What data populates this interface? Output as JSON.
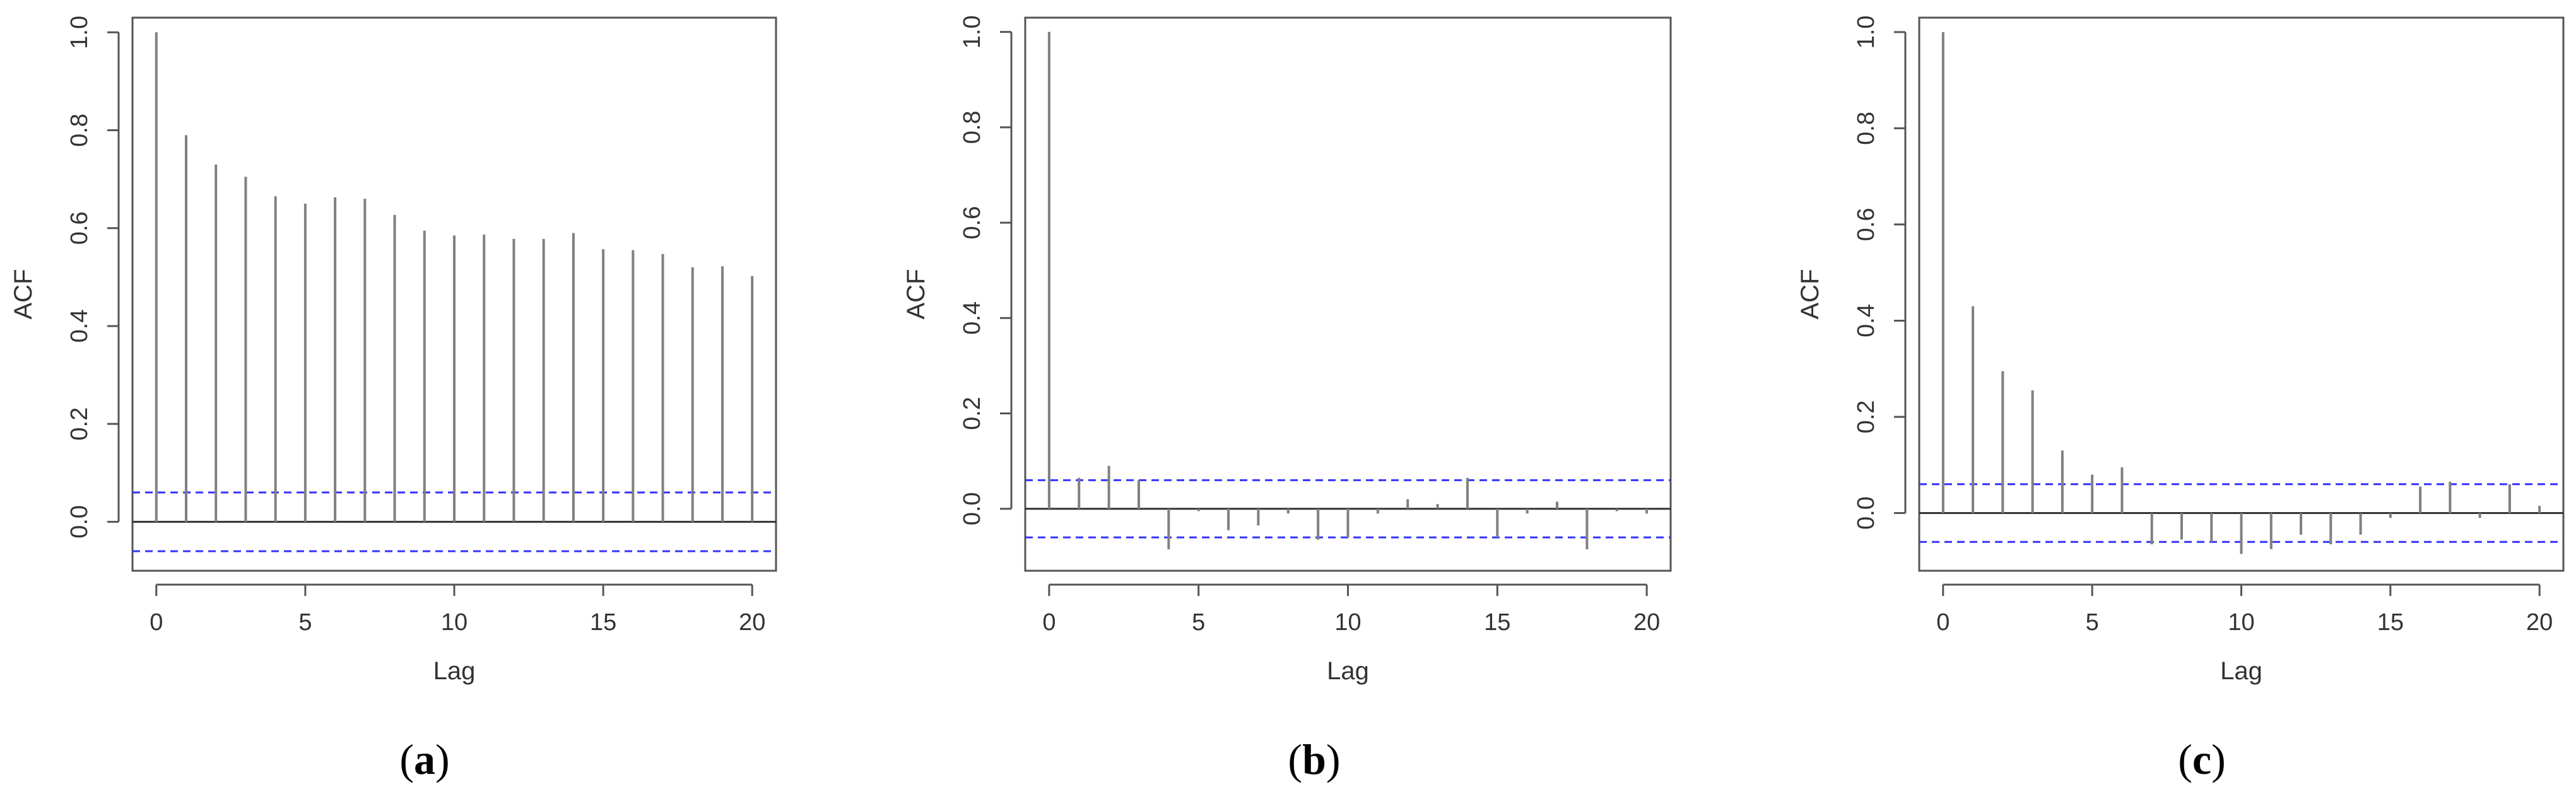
{
  "figure": {
    "captions": [
      {
        "open": "(",
        "letter": "a",
        "close": ")"
      },
      {
        "open": "(",
        "letter": "b",
        "close": ")"
      },
      {
        "open": "(",
        "letter": "c",
        "close": ")"
      }
    ]
  },
  "chart_data": [
    {
      "type": "bar",
      "title": "",
      "xlabel": "Lag",
      "ylabel": "ACF",
      "x": [
        0,
        1,
        2,
        3,
        4,
        5,
        6,
        7,
        8,
        9,
        10,
        11,
        12,
        13,
        14,
        15,
        16,
        17,
        18,
        19,
        20
      ],
      "values": [
        1.0,
        0.79,
        0.73,
        0.705,
        0.665,
        0.65,
        0.663,
        0.66,
        0.627,
        0.595,
        0.585,
        0.587,
        0.578,
        0.578,
        0.59,
        0.557,
        0.555,
        0.547,
        0.52,
        0.522,
        0.502
      ],
      "confidence_band": 0.06,
      "xlim": [
        -0.8,
        20.8
      ],
      "ylim": [
        -0.1,
        1.03
      ],
      "xticks": [
        "0",
        "5",
        "10",
        "15",
        "20"
      ],
      "yticks": [
        "0.0",
        "0.2",
        "0.4",
        "0.6",
        "0.8",
        "1.0"
      ],
      "colors": {
        "bars": "#808080",
        "band": "#3333ff",
        "frame": "#555555"
      }
    },
    {
      "type": "bar",
      "title": "",
      "xlabel": "Lag",
      "ylabel": "ACF",
      "x": [
        0,
        1,
        2,
        3,
        4,
        5,
        6,
        7,
        8,
        9,
        10,
        11,
        12,
        13,
        14,
        15,
        16,
        17,
        18,
        19,
        20
      ],
      "values": [
        1.0,
        0.065,
        0.09,
        0.06,
        -0.085,
        -0.005,
        -0.045,
        -0.035,
        -0.01,
        -0.065,
        -0.06,
        -0.01,
        0.02,
        0.01,
        0.065,
        -0.06,
        -0.01,
        0.015,
        -0.085,
        -0.005,
        -0.01
      ],
      "confidence_band": 0.06,
      "xlim": [
        -0.8,
        20.8
      ],
      "ylim": [
        -0.13,
        1.03
      ],
      "xticks": [
        "0",
        "5",
        "10",
        "15",
        "20"
      ],
      "yticks": [
        "0.0",
        "0.2",
        "0.4",
        "0.6",
        "0.8",
        "1.0"
      ],
      "colors": {
        "bars": "#808080",
        "band": "#3333ff",
        "frame": "#555555"
      }
    },
    {
      "type": "bar",
      "title": "",
      "xlabel": "Lag",
      "ylabel": "ACF",
      "x": [
        0,
        1,
        2,
        3,
        4,
        5,
        6,
        7,
        8,
        9,
        10,
        11,
        12,
        13,
        14,
        15,
        16,
        17,
        18,
        19,
        20
      ],
      "values": [
        1.0,
        0.43,
        0.295,
        0.255,
        0.13,
        0.08,
        0.095,
        -0.065,
        -0.055,
        -0.06,
        -0.085,
        -0.075,
        -0.045,
        -0.065,
        -0.045,
        -0.01,
        0.055,
        0.065,
        -0.01,
        0.06,
        0.015
      ],
      "confidence_band": 0.06,
      "xlim": [
        -0.8,
        20.8
      ],
      "ylim": [
        -0.12,
        1.03
      ],
      "xticks": [
        "0",
        "5",
        "10",
        "15",
        "20"
      ],
      "yticks": [
        "0.0",
        "0.2",
        "0.4",
        "0.6",
        "0.8",
        "1.0"
      ],
      "colors": {
        "bars": "#808080",
        "band": "#3333ff",
        "frame": "#555555"
      }
    }
  ]
}
